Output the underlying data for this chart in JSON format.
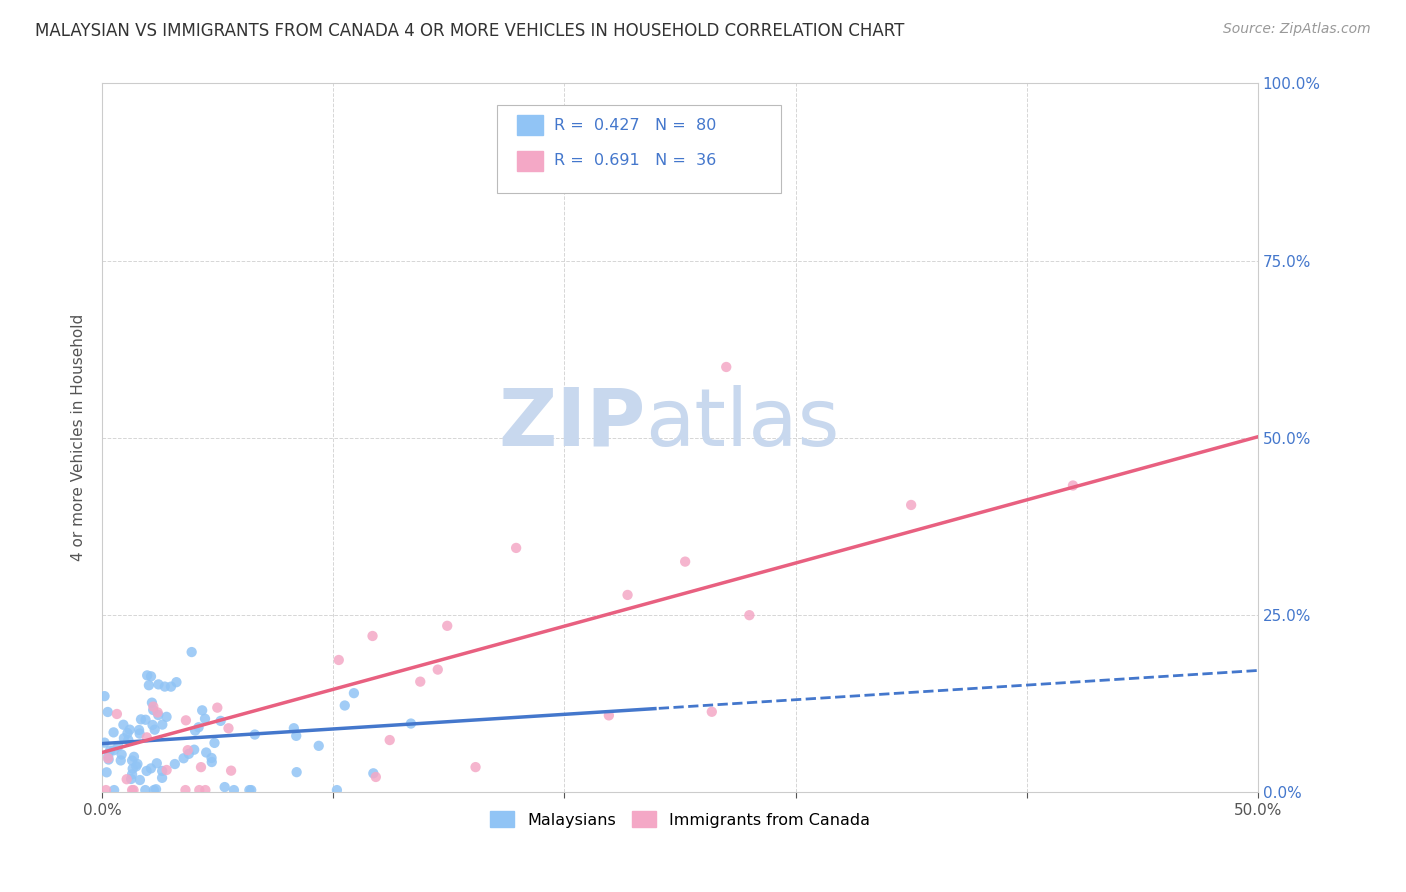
{
  "title": "MALAYSIAN VS IMMIGRANTS FROM CANADA 4 OR MORE VEHICLES IN HOUSEHOLD CORRELATION CHART",
  "source": "Source: ZipAtlas.com",
  "ylabel_label": "4 or more Vehicles in Household",
  "xlim": [
    0.0,
    0.5
  ],
  "ylim": [
    0.0,
    0.32
  ],
  "xtick_positions": [
    0.0,
    0.1,
    0.2,
    0.3,
    0.4,
    0.5
  ],
  "xtick_labels": [
    "0.0%",
    "",
    "",
    "",
    "",
    "50.0%"
  ],
  "ytick_positions": [
    0.0,
    0.08,
    0.16,
    0.24,
    0.32
  ],
  "ytick_labels_right": [
    "0.0%",
    "25.0%",
    "50.0%",
    "75.0%",
    "100.0%"
  ],
  "background_color": "#ffffff",
  "grid_color": "#cccccc",
  "malaysians_dot_color": "#91C4F5",
  "immigrants_dot_color": "#F4A8C6",
  "malaysians_line_color": "#4477CC",
  "immigrants_line_color": "#E86080",
  "right_axis_label_color": "#4477CC",
  "legend_R_malaysians": "0.427",
  "legend_N_malaysians": "80",
  "legend_R_immigrants": "0.691",
  "legend_N_immigrants": "36",
  "watermark_zip_color": "#C8D8EE",
  "watermark_atlas_color": "#C8D8EE",
  "mal_line_solid_x_end": 0.25,
  "imm_line_x_end": 0.5,
  "mal_line_intercept": 0.02,
  "mal_line_slope": 0.068,
  "imm_line_intercept": 0.005,
  "imm_line_slope": 0.3,
  "title_fontsize": 12,
  "source_fontsize": 10,
  "axis_label_fontsize": 11,
  "tick_fontsize": 11
}
